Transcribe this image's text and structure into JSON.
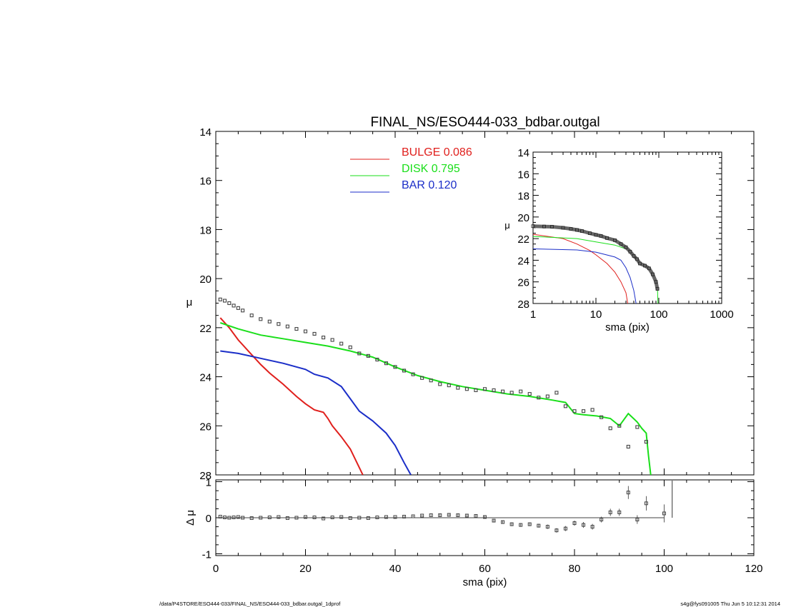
{
  "title": "FINAL_NS/ESO444-033_bdbar.outgal",
  "footer_left": "/data/P4STORE/ESO444-033/FINAL_NS/ESO444-033_bdbar.outgal_1dprof",
  "footer_right": "s4g@fys091005  Thu Jun  5 10:12:31 2014",
  "chart_data": [
    {
      "type": "line",
      "panel": "main",
      "xlabel": "",
      "ylabel": "μ",
      "xlim": [
        0,
        120
      ],
      "ylim": [
        28,
        14
      ],
      "y_inverted": true,
      "yticks": [
        14,
        16,
        18,
        20,
        22,
        24,
        26,
        28
      ],
      "legend_position": "top-center",
      "legend": [
        {
          "name": "BULGE",
          "value": "0.086",
          "color": "#e0201d"
        },
        {
          "name": "DISK",
          "value": "0.795",
          "color": "#1adf1a"
        },
        {
          "name": "BAR",
          "value": "0.120",
          "color": "#1b2ec8"
        }
      ],
      "series": [
        {
          "name": "BULGE",
          "color": "#e0201d",
          "x": [
            1,
            3,
            5,
            8,
            10,
            12,
            15,
            18,
            20,
            22,
            24,
            25,
            26,
            28,
            30,
            32,
            32.8
          ],
          "y": [
            21.6,
            22.0,
            22.5,
            23.1,
            23.5,
            23.85,
            24.3,
            24.8,
            25.1,
            25.35,
            25.45,
            25.7,
            26.0,
            26.45,
            26.95,
            27.7,
            28.0
          ]
        },
        {
          "name": "DISK",
          "color": "#1adf1a",
          "x": [
            1,
            5,
            10,
            15,
            20,
            25,
            30,
            35,
            40,
            45,
            50,
            55,
            60,
            65,
            70,
            75,
            78,
            80,
            82,
            85,
            88,
            90,
            92,
            94,
            95,
            96,
            96.5,
            97
          ],
          "y": [
            21.8,
            22.05,
            22.3,
            22.45,
            22.6,
            22.75,
            22.95,
            23.2,
            23.6,
            23.95,
            24.2,
            24.4,
            24.55,
            24.7,
            24.8,
            24.95,
            25.05,
            25.5,
            25.55,
            25.6,
            25.7,
            26.0,
            25.5,
            25.85,
            26.1,
            26.3,
            27.2,
            28.0
          ]
        },
        {
          "name": "BAR",
          "color": "#1b2ec8",
          "x": [
            1,
            5,
            10,
            15,
            20,
            22,
            25,
            28,
            30,
            32,
            35,
            38,
            40,
            42,
            43.5
          ],
          "y": [
            22.95,
            23.05,
            23.25,
            23.45,
            23.7,
            23.9,
            24.05,
            24.4,
            24.9,
            25.4,
            25.8,
            26.3,
            26.8,
            27.5,
            28.0
          ]
        },
        {
          "name": "data",
          "color": "#444444",
          "x": [
            1,
            2,
            3,
            4,
            5,
            6,
            8,
            10,
            12,
            14,
            16,
            18,
            20,
            22,
            24,
            26,
            28,
            30,
            32,
            34,
            36,
            38,
            40,
            42,
            44,
            46,
            48,
            50,
            52,
            54,
            56,
            58,
            60,
            62,
            64,
            66,
            68,
            70,
            72,
            74,
            76,
            78,
            80,
            82,
            84,
            86,
            88,
            90,
            92,
            94,
            96
          ],
          "y": [
            20.85,
            20.9,
            21.0,
            21.1,
            21.2,
            21.3,
            21.5,
            21.65,
            21.75,
            21.85,
            21.95,
            22.05,
            22.15,
            22.25,
            22.4,
            22.5,
            22.65,
            22.8,
            23.05,
            23.15,
            23.3,
            23.45,
            23.6,
            23.75,
            23.9,
            24.05,
            24.15,
            24.3,
            24.35,
            24.45,
            24.5,
            24.55,
            24.5,
            24.55,
            24.6,
            24.65,
            24.6,
            24.7,
            24.85,
            24.8,
            24.65,
            25.2,
            25.4,
            25.4,
            25.35,
            25.65,
            26.1,
            26.0,
            26.85,
            26.05,
            26.65
          ]
        }
      ]
    },
    {
      "type": "line",
      "panel": "inset",
      "xlabel": "sma (pix)",
      "ylabel": "μ",
      "xscale": "log",
      "xlim": [
        1,
        1000
      ],
      "xticks": [
        1,
        10,
        100,
        1000
      ],
      "ylim": [
        28,
        14
      ],
      "y_inverted": true,
      "yticks": [
        14,
        16,
        18,
        20,
        22,
        24,
        26,
        28
      ],
      "series": [
        {
          "name": "BULGE",
          "color": "#e0201d",
          "x": [
            1,
            3,
            5,
            8,
            10,
            15,
            20,
            25,
            30,
            32
          ],
          "y": [
            21.6,
            22.0,
            22.5,
            23.1,
            23.5,
            24.3,
            25.1,
            26.0,
            27.0,
            28.0
          ]
        },
        {
          "name": "DISK",
          "color": "#1adf1a",
          "x": [
            1,
            5,
            10,
            20,
            30,
            50,
            70,
            85,
            95,
            97
          ],
          "y": [
            21.8,
            22.0,
            22.3,
            22.6,
            22.95,
            24.2,
            24.8,
            25.6,
            26.3,
            28.0
          ]
        },
        {
          "name": "BAR",
          "color": "#1b2ec8",
          "x": [
            1,
            5,
            10,
            20,
            25,
            30,
            35,
            40,
            43.5
          ],
          "y": [
            22.95,
            23.05,
            23.25,
            23.7,
            24.0,
            24.7,
            25.6,
            26.8,
            28.0
          ]
        },
        {
          "name": "data",
          "color": "#444444",
          "x": [
            1,
            1.5,
            2,
            3,
            4,
            5,
            6,
            8,
            10,
            12,
            15,
            20,
            25,
            30,
            35,
            40,
            45,
            50,
            60,
            70,
            80,
            90,
            95
          ],
          "y": [
            20.85,
            20.88,
            20.9,
            21.0,
            21.1,
            21.2,
            21.3,
            21.5,
            21.65,
            21.75,
            21.95,
            22.15,
            22.5,
            22.8,
            23.2,
            23.6,
            23.9,
            24.3,
            24.5,
            24.75,
            25.3,
            26.0,
            26.65
          ]
        }
      ]
    },
    {
      "type": "scatter",
      "panel": "residual",
      "xlabel": "sma (pix)",
      "ylabel": "Δ μ",
      "xlim": [
        0,
        120
      ],
      "xticks": [
        0,
        20,
        40,
        60,
        80,
        100,
        120
      ],
      "ylim": [
        -1.05,
        1.05
      ],
      "yticks": [
        -1,
        0,
        1
      ],
      "series": [
        {
          "name": "residual",
          "color": "#444444",
          "x": [
            1,
            2,
            3,
            4,
            5,
            6,
            8,
            10,
            12,
            14,
            16,
            18,
            20,
            22,
            24,
            26,
            28,
            30,
            32,
            34,
            36,
            38,
            40,
            42,
            44,
            46,
            48,
            50,
            52,
            54,
            56,
            58,
            60,
            62,
            64,
            66,
            68,
            70,
            72,
            74,
            76,
            78,
            80,
            82,
            84,
            86,
            88,
            90,
            92,
            94,
            96,
            100
          ],
          "y": [
            0.03,
            0.01,
            0.0,
            0.01,
            0.02,
            0.0,
            -0.01,
            0.0,
            0.01,
            0.02,
            -0.01,
            0.0,
            0.02,
            0.01,
            -0.02,
            0.01,
            0.02,
            -0.01,
            0.0,
            -0.01,
            0.01,
            0.02,
            0.02,
            0.03,
            0.04,
            0.06,
            0.07,
            0.07,
            0.08,
            0.07,
            0.06,
            0.05,
            0.02,
            -0.08,
            -0.12,
            -0.18,
            -0.2,
            -0.18,
            -0.22,
            -0.25,
            -0.35,
            -0.3,
            -0.15,
            -0.2,
            -0.25,
            -0.05,
            0.15,
            0.15,
            0.7,
            -0.05,
            0.4,
            0.12
          ],
          "err": [
            0.01,
            0.01,
            0.01,
            0.01,
            0.01,
            0.01,
            0.01,
            0.01,
            0.01,
            0.01,
            0.01,
            0.01,
            0.01,
            0.01,
            0.01,
            0.01,
            0.01,
            0.01,
            0.01,
            0.01,
            0.01,
            0.01,
            0.01,
            0.02,
            0.02,
            0.02,
            0.02,
            0.03,
            0.03,
            0.03,
            0.03,
            0.03,
            0.03,
            0.04,
            0.04,
            0.05,
            0.05,
            0.05,
            0.05,
            0.06,
            0.06,
            0.07,
            0.07,
            0.08,
            0.08,
            0.08,
            0.1,
            0.1,
            0.18,
            0.12,
            0.2,
            0.25
          ]
        }
      ]
    }
  ]
}
